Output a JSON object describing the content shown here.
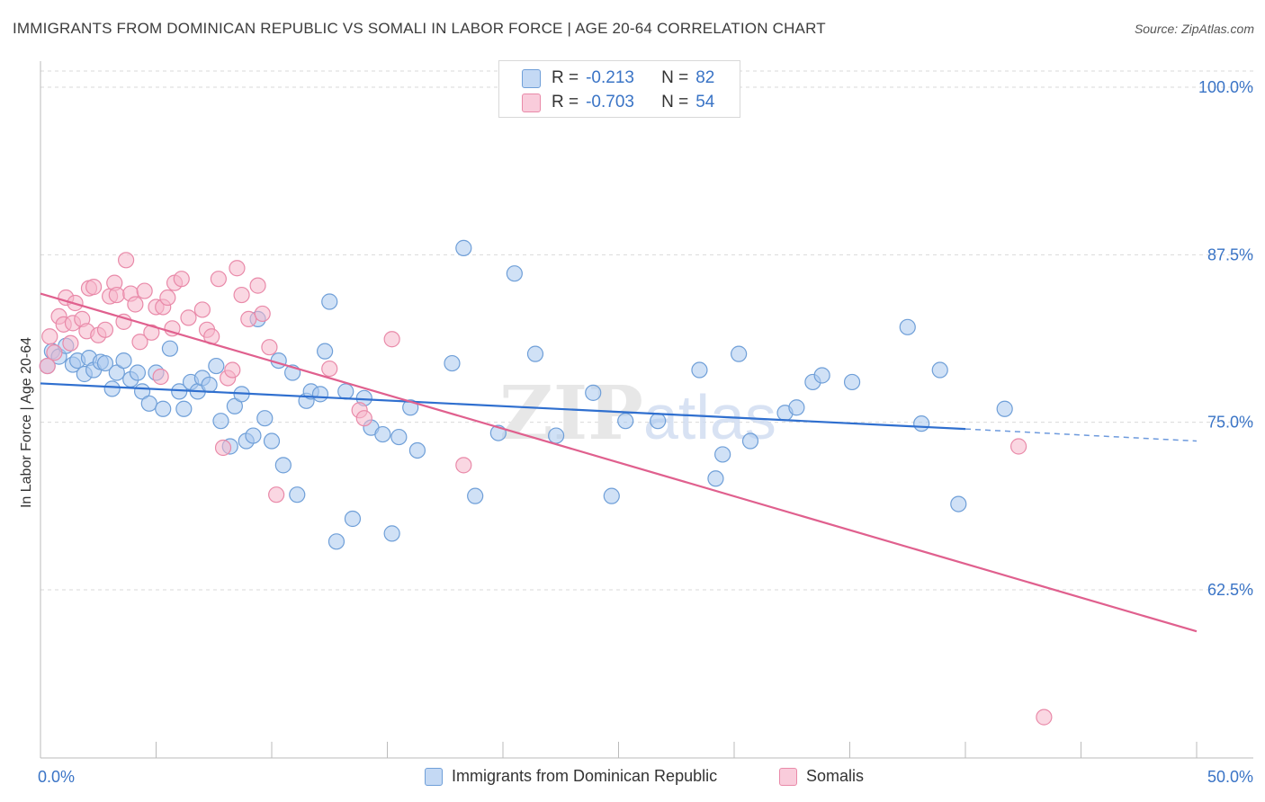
{
  "title": "IMMIGRANTS FROM DOMINICAN REPUBLIC VS SOMALI IN LABOR FORCE | AGE 20-64 CORRELATION CHART",
  "source": "Source: ZipAtlas.com",
  "watermark": {
    "zip": "ZIP",
    "atlas": "atlas"
  },
  "colors": {
    "blue_fill": "#a9c8ef",
    "blue_stroke": "#6f9fd8",
    "blue_line": "#2f6fcf",
    "pink_fill": "#f5b7cb",
    "pink_stroke": "#e98aa9",
    "pink_line": "#e0608e",
    "tick_label": "#3a74c6",
    "grid": "#d9d9d9"
  },
  "legend_box": {
    "rows": [
      {
        "r_label": "R =",
        "r_value": "-0.213",
        "n_label": "N =",
        "n_value": "82"
      },
      {
        "r_label": "R =",
        "r_value": "-0.703",
        "n_label": "N =",
        "n_value": "54"
      }
    ]
  },
  "chart_data": {
    "type": "scatter",
    "title": "IMMIGRANTS FROM DOMINICAN REPUBLIC VS SOMALI IN LABOR FORCE | AGE 20-64 CORRELATION CHART",
    "xlabel": "",
    "ylabel": "In Labor Force | Age 20-64",
    "xlim": [
      0,
      50
    ],
    "ylim": [
      52,
      103
    ],
    "x_tick_labels": [
      "0.0%",
      "50.0%"
    ],
    "y_ticks": [
      62.5,
      75.0,
      87.5,
      100.0
    ],
    "y_tick_labels": [
      "62.5%",
      "75.0%",
      "87.5%",
      "100.0%"
    ],
    "grid": true,
    "legend_position": "bottom",
    "series": [
      {
        "name": "Immigrants from Dominican Republic",
        "color": "#a9c8ef",
        "points": [
          [
            0.3,
            79.2
          ],
          [
            0.5,
            80.3
          ],
          [
            0.8,
            79.9
          ],
          [
            1.1,
            80.7
          ],
          [
            1.4,
            79.3
          ],
          [
            1.6,
            79.6
          ],
          [
            1.9,
            78.6
          ],
          [
            2.1,
            79.8
          ],
          [
            2.3,
            78.9
          ],
          [
            2.6,
            79.5
          ],
          [
            2.8,
            79.4
          ],
          [
            3.1,
            77.5
          ],
          [
            3.3,
            78.7
          ],
          [
            3.6,
            79.6
          ],
          [
            3.9,
            78.2
          ],
          [
            4.2,
            78.7
          ],
          [
            4.4,
            77.3
          ],
          [
            4.7,
            76.4
          ],
          [
            5.0,
            78.7
          ],
          [
            5.3,
            76.0
          ],
          [
            5.6,
            80.5
          ],
          [
            6.0,
            77.3
          ],
          [
            6.2,
            76.0
          ],
          [
            6.5,
            78.0
          ],
          [
            6.8,
            77.3
          ],
          [
            7.0,
            78.3
          ],
          [
            7.3,
            77.8
          ],
          [
            7.6,
            79.2
          ],
          [
            7.8,
            75.1
          ],
          [
            8.2,
            73.2
          ],
          [
            8.4,
            76.2
          ],
          [
            8.7,
            77.1
          ],
          [
            8.9,
            73.6
          ],
          [
            9.2,
            74.0
          ],
          [
            9.4,
            82.7
          ],
          [
            9.7,
            75.3
          ],
          [
            10.0,
            73.6
          ],
          [
            10.3,
            79.6
          ],
          [
            10.5,
            71.8
          ],
          [
            10.9,
            78.7
          ],
          [
            11.1,
            69.6
          ],
          [
            11.5,
            76.6
          ],
          [
            11.7,
            77.3
          ],
          [
            12.1,
            77.1
          ],
          [
            12.3,
            80.3
          ],
          [
            12.5,
            84.0
          ],
          [
            12.8,
            66.1
          ],
          [
            13.2,
            77.3
          ],
          [
            13.5,
            67.8
          ],
          [
            14.0,
            76.8
          ],
          [
            14.3,
            74.6
          ],
          [
            14.8,
            74.1
          ],
          [
            15.2,
            66.7
          ],
          [
            15.5,
            73.9
          ],
          [
            16.0,
            76.1
          ],
          [
            16.3,
            72.9
          ],
          [
            17.8,
            79.4
          ],
          [
            18.3,
            88.0
          ],
          [
            18.8,
            69.5
          ],
          [
            19.8,
            74.2
          ],
          [
            20.5,
            86.1
          ],
          [
            21.4,
            80.1
          ],
          [
            22.3,
            74.0
          ],
          [
            23.9,
            77.2
          ],
          [
            24.7,
            69.5
          ],
          [
            25.3,
            75.1
          ],
          [
            26.7,
            75.1
          ],
          [
            28.5,
            78.9
          ],
          [
            29.2,
            70.8
          ],
          [
            29.5,
            72.6
          ],
          [
            30.2,
            80.1
          ],
          [
            30.7,
            73.6
          ],
          [
            32.2,
            75.7
          ],
          [
            32.7,
            76.1
          ],
          [
            33.4,
            78.0
          ],
          [
            33.8,
            78.5
          ],
          [
            35.1,
            78.0
          ],
          [
            37.5,
            82.1
          ],
          [
            38.1,
            74.9
          ],
          [
            38.9,
            78.9
          ],
          [
            39.7,
            68.9
          ],
          [
            41.7,
            76.0
          ]
        ],
        "trend": {
          "x1": 0,
          "y1": 77.9,
          "x2": 40.0,
          "y2": 74.5,
          "dashed_to_x": 50.0,
          "dashed_to_y": 73.6
        }
      },
      {
        "name": "Somalis",
        "color": "#f5b7cb",
        "points": [
          [
            0.3,
            79.2
          ],
          [
            0.4,
            81.4
          ],
          [
            0.6,
            80.2
          ],
          [
            0.8,
            82.9
          ],
          [
            1.0,
            82.3
          ],
          [
            1.1,
            84.3
          ],
          [
            1.3,
            80.9
          ],
          [
            1.4,
            82.4
          ],
          [
            1.5,
            83.9
          ],
          [
            1.8,
            82.7
          ],
          [
            2.0,
            81.8
          ],
          [
            2.1,
            85.0
          ],
          [
            2.3,
            85.1
          ],
          [
            2.5,
            81.5
          ],
          [
            2.8,
            81.9
          ],
          [
            3.0,
            84.4
          ],
          [
            3.2,
            85.4
          ],
          [
            3.3,
            84.5
          ],
          [
            3.6,
            82.5
          ],
          [
            3.7,
            87.1
          ],
          [
            3.9,
            84.6
          ],
          [
            4.1,
            83.8
          ],
          [
            4.3,
            81.0
          ],
          [
            4.5,
            84.8
          ],
          [
            4.8,
            81.7
          ],
          [
            5.0,
            83.6
          ],
          [
            5.2,
            78.4
          ],
          [
            5.3,
            83.6
          ],
          [
            5.5,
            84.3
          ],
          [
            5.7,
            82.0
          ],
          [
            5.8,
            85.4
          ],
          [
            6.1,
            85.7
          ],
          [
            6.4,
            82.8
          ],
          [
            7.0,
            83.4
          ],
          [
            7.2,
            81.9
          ],
          [
            7.4,
            81.4
          ],
          [
            7.7,
            85.7
          ],
          [
            7.9,
            73.1
          ],
          [
            8.1,
            78.3
          ],
          [
            8.3,
            78.9
          ],
          [
            8.5,
            86.5
          ],
          [
            8.7,
            84.5
          ],
          [
            9.0,
            82.7
          ],
          [
            9.4,
            85.2
          ],
          [
            9.6,
            83.1
          ],
          [
            9.9,
            80.6
          ],
          [
            10.2,
            69.6
          ],
          [
            13.8,
            75.9
          ],
          [
            14.0,
            75.3
          ],
          [
            15.2,
            81.2
          ],
          [
            18.3,
            71.8
          ],
          [
            42.3,
            73.2
          ],
          [
            43.4,
            53.0
          ],
          [
            12.5,
            79.0
          ]
        ],
        "trend": {
          "x1": 0,
          "y1": 84.6,
          "x2": 50.0,
          "y2": 59.4
        }
      }
    ]
  }
}
